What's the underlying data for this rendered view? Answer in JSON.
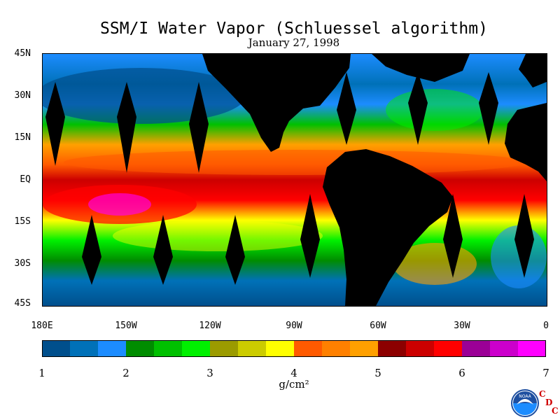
{
  "title": "SSM/I Water Vapor (Schluessel algorithm)",
  "subtitle": "January 27, 1998",
  "map": {
    "lat_labels": [
      "45N",
      "30N",
      "15N",
      "EQ",
      "15S",
      "30S",
      "45S"
    ],
    "lon_labels": [
      "180E",
      "150W",
      "120W",
      "90W",
      "60W",
      "30W",
      "0"
    ],
    "lat_range": [
      -45,
      45
    ],
    "lon_range": [
      -180,
      0
    ],
    "variable": "total precipitable water vapor",
    "land_color": "#000000",
    "satellite_gap_color": "#000000"
  },
  "colorbar": {
    "units": "g/cm²",
    "tick_labels": [
      "1",
      "2",
      "3",
      "4",
      "5",
      "6",
      "7"
    ],
    "range": [
      1,
      7
    ],
    "colors": [
      "#004f8c",
      "#0071b8",
      "#1c8cff",
      "#008c00",
      "#00c000",
      "#00f000",
      "#9b9b00",
      "#cccc00",
      "#ffff00",
      "#ff5a00",
      "#ff8000",
      "#ffa000",
      "#8c0000",
      "#cc0000",
      "#ff0000",
      "#9b0096",
      "#cc00cc",
      "#ff00ff"
    ]
  },
  "logo": {
    "text": "NOAA",
    "letters": [
      "C",
      "D",
      "C"
    ]
  }
}
